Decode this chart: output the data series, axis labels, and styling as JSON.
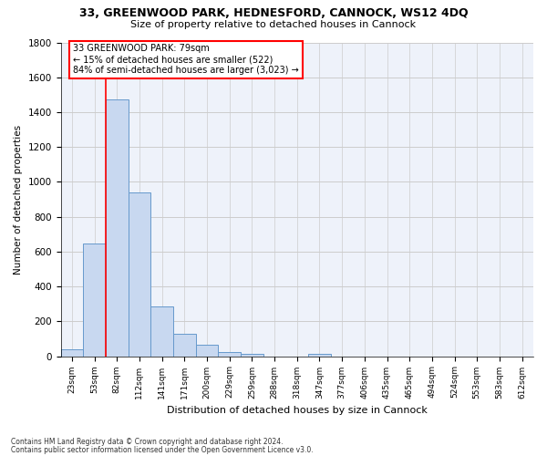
{
  "title1": "33, GREENWOOD PARK, HEDNESFORD, CANNOCK, WS12 4DQ",
  "title2": "Size of property relative to detached houses in Cannock",
  "xlabel": "Distribution of detached houses by size in Cannock",
  "ylabel": "Number of detached properties",
  "categories": [
    "23sqm",
    "53sqm",
    "82sqm",
    "112sqm",
    "141sqm",
    "171sqm",
    "200sqm",
    "229sqm",
    "259sqm",
    "288sqm",
    "318sqm",
    "347sqm",
    "377sqm",
    "406sqm",
    "435sqm",
    "465sqm",
    "494sqm",
    "524sqm",
    "553sqm",
    "583sqm",
    "612sqm"
  ],
  "values": [
    40,
    648,
    1475,
    938,
    285,
    128,
    65,
    22,
    15,
    0,
    0,
    12,
    0,
    0,
    0,
    0,
    0,
    0,
    0,
    0,
    0
  ],
  "bar_color": "#c8d8f0",
  "bar_edge_color": "#6699cc",
  "vline_x": 1.5,
  "marker_label": "33 GREENWOOD PARK: 79sqm",
  "pct_smaller": "15% of detached houses are smaller (522)",
  "pct_larger": "84% of semi-detached houses are larger (3,023)",
  "vline_color": "red",
  "ylim": [
    0,
    1800
  ],
  "yticks": [
    0,
    200,
    400,
    600,
    800,
    1000,
    1200,
    1400,
    1600,
    1800
  ],
  "grid_color": "#cccccc",
  "bg_color": "#eef2fa",
  "footnote1": "Contains HM Land Registry data © Crown copyright and database right 2024.",
  "footnote2": "Contains public sector information licensed under the Open Government Licence v3.0."
}
